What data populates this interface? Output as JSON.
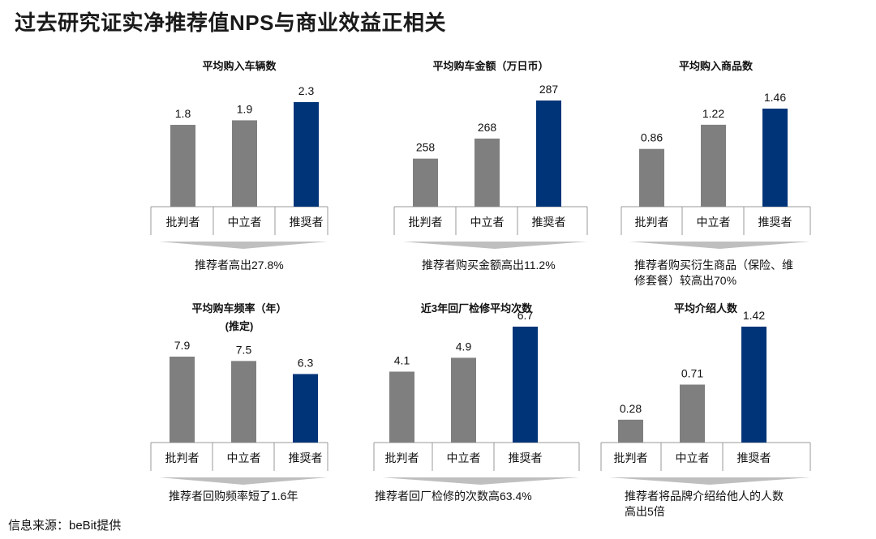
{
  "title": "过去研究证实净推荐值NPS与商业效益正相关",
  "source": "信息来源：beBit提供",
  "colors": {
    "gray_bar": "#7f7f7f",
    "promoter_bar": "#003478",
    "axis": "#999999",
    "arrow": "#bfbfbf"
  },
  "panels": [
    {
      "title": [
        "平均购入车辆数"
      ],
      "caption": [
        "推荐者高出27.8%"
      ]
    },
    {
      "title": [
        "平均购车金额（万日币）"
      ],
      "caption": [
        "推荐者购买金额高出11.2%"
      ]
    },
    {
      "title": [
        "平均购入商品数"
      ],
      "caption": [
        "推荐者购买衍生商品（保险、维",
        "修套餐）较高出70%"
      ]
    },
    {
      "title": [
        "平均购车频率（年）",
        "(推定)"
      ],
      "caption": [
        "推荐者回购频率短了1.6年"
      ]
    },
    {
      "title": [
        "近3年回厂检修平均次数"
      ],
      "caption": [
        "推荐者回厂检修的次数高63.4%"
      ]
    },
    {
      "title": [
        "平均介绍人数"
      ],
      "caption": [
        "推荐者将品牌介绍给他人的人数",
        "高出5倍"
      ]
    }
  ],
  "chart_data": [
    {
      "type": "bar",
      "title": "平均购入车辆数",
      "categories": [
        "批判者",
        "中立者",
        "推奨者"
      ],
      "values": [
        1.8,
        1.9,
        2.3
      ],
      "labels": [
        "1.8",
        "1.9",
        "2.3"
      ],
      "ylim": [
        0,
        2.4
      ]
    },
    {
      "type": "bar",
      "title": "平均购车金额（万日币）",
      "categories": [
        "批判者",
        "中立者",
        "推奨者"
      ],
      "values": [
        258,
        268,
        287
      ],
      "labels": [
        "258",
        "268",
        "287"
      ],
      "ylim": [
        234,
        288
      ]
    },
    {
      "type": "bar",
      "title": "平均购入商品数",
      "categories": [
        "批判者",
        "中立者",
        "推奨者"
      ],
      "values": [
        0.86,
        1.22,
        1.46
      ],
      "labels": [
        "0.86",
        "1.22",
        "1.46"
      ],
      "ylim": [
        0,
        1.6
      ]
    },
    {
      "type": "bar",
      "title": "平均购车频率（年）(推定)",
      "categories": [
        "批判者",
        "中立者",
        "推奨者"
      ],
      "values": [
        7.9,
        7.5,
        6.3
      ],
      "labels": [
        "7.9",
        "7.5",
        "6.3"
      ],
      "ylim": [
        0,
        10
      ]
    },
    {
      "type": "bar",
      "title": "近3年回厂检修平均次数",
      "categories": [
        "批判者",
        "中立者",
        "推奨者"
      ],
      "values": [
        4.1,
        4.9,
        6.7
      ],
      "labels": [
        "4.1",
        "4.9",
        "6.7"
      ],
      "ylim": [
        0,
        7.4
      ]
    },
    {
      "type": "bar",
      "title": "平均介绍人数",
      "categories": [
        "批判者",
        "中立者",
        "推奨者"
      ],
      "values": [
        0.28,
        0.71,
        1.42
      ],
      "labels": [
        "0.28",
        "0.71",
        "1.42"
      ],
      "ylim": [
        0,
        1.52
      ]
    }
  ]
}
